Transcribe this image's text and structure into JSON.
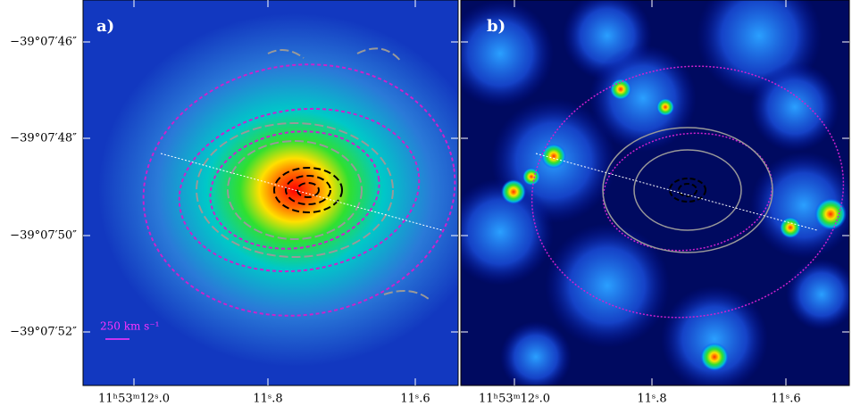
{
  "panels": [
    {
      "label": "a)"
    },
    {
      "label": "b)"
    }
  ],
  "y_axis": {
    "ticks": [
      "−39°07′46″",
      "−39°07′48″",
      "−39°07′50″",
      "−39°07′52″"
    ]
  },
  "x_axis": {
    "ticks": [
      "11ʰ53ᵐ12ˢ.0",
      "11ˢ.8",
      "11ˢ.6"
    ]
  },
  "scale_bar": {
    "label": "250 km s⁻¹"
  }
}
